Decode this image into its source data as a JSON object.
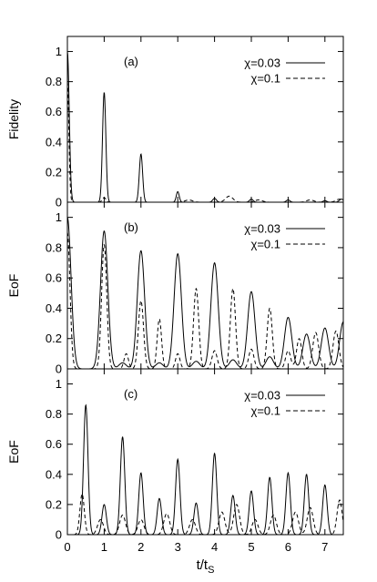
{
  "chart_data": [
    {
      "type": "line",
      "panel_label": "(a)",
      "ylabel": "Fidelity",
      "xlim": [
        0,
        7.5
      ],
      "ylim": [
        0,
        1.1
      ],
      "yticks": [
        "0",
        "0.2",
        "0.4",
        "0.6",
        "0.8",
        "1"
      ],
      "xticks": [],
      "legend_position": "top-right",
      "series": [
        {
          "name": "χ=0.03",
          "style": "solid",
          "peaks": [
            [
              0.0,
              1.0,
              0.05
            ],
            [
              1.0,
              0.73,
              0.045
            ],
            [
              2.0,
              0.32,
              0.045
            ],
            [
              3.0,
              0.07,
              0.04
            ],
            [
              4.0,
              0.025,
              0.05
            ],
            [
              5.0,
              0.02,
              0.05
            ],
            [
              6.0,
              0.015,
              0.05
            ],
            [
              7.0,
              0.01,
              0.05
            ],
            [
              7.45,
              0.02,
              0.06
            ]
          ]
        },
        {
          "name": "χ=0.1",
          "style": "dashed",
          "peaks": [
            [
              0.0,
              0.8,
              0.04
            ],
            [
              1.0,
              0.03,
              0.05
            ],
            [
              3.3,
              0.015,
              0.1
            ],
            [
              4.4,
              0.04,
              0.1
            ],
            [
              5.2,
              0.015,
              0.1
            ],
            [
              6.6,
              0.015,
              0.1
            ],
            [
              7.4,
              0.02,
              0.1
            ]
          ]
        }
      ]
    },
    {
      "type": "line",
      "panel_label": "(b)",
      "ylabel": "EoF",
      "xlim": [
        0,
        7.5
      ],
      "ylim": [
        0,
        1.1
      ],
      "yticks": [
        "0",
        "0.2",
        "0.4",
        "0.6",
        "0.8",
        "1"
      ],
      "xticks": [],
      "legend_position": "top-right",
      "series": [
        {
          "name": "χ=0.03",
          "style": "solid",
          "peaks": [
            [
              0.0,
              1.0,
              0.1
            ],
            [
              1.0,
              0.91,
              0.1
            ],
            [
              1.5,
              0.04,
              0.1
            ],
            [
              2.0,
              0.78,
              0.1
            ],
            [
              2.5,
              0.04,
              0.1
            ],
            [
              3.0,
              0.76,
              0.1
            ],
            [
              3.5,
              0.05,
              0.1
            ],
            [
              4.0,
              0.7,
              0.1
            ],
            [
              4.5,
              0.06,
              0.1
            ],
            [
              5.0,
              0.51,
              0.1
            ],
            [
              5.5,
              0.08,
              0.1
            ],
            [
              6.0,
              0.34,
              0.1
            ],
            [
              6.5,
              0.23,
              0.1
            ],
            [
              7.0,
              0.27,
              0.1
            ],
            [
              7.5,
              0.31,
              0.1
            ]
          ]
        },
        {
          "name": "χ=0.1",
          "style": "dashed",
          "peaks": [
            [
              0.0,
              0.9,
              0.07
            ],
            [
              1.0,
              0.82,
              0.07
            ],
            [
              1.6,
              0.1,
              0.06
            ],
            [
              2.0,
              0.45,
              0.07
            ],
            [
              2.5,
              0.33,
              0.06
            ],
            [
              3.0,
              0.1,
              0.06
            ],
            [
              3.5,
              0.53,
              0.07
            ],
            [
              4.0,
              0.12,
              0.07
            ],
            [
              4.5,
              0.53,
              0.07
            ],
            [
              5.0,
              0.13,
              0.07
            ],
            [
              5.5,
              0.4,
              0.07
            ],
            [
              6.0,
              0.12,
              0.07
            ],
            [
              6.3,
              0.2,
              0.07
            ],
            [
              6.75,
              0.24,
              0.08
            ],
            [
              7.3,
              0.25,
              0.08
            ]
          ]
        }
      ]
    },
    {
      "type": "line",
      "panel_label": "(c)",
      "ylabel": "EoF",
      "xlabel": "t/tS",
      "xlim": [
        0,
        7.5
      ],
      "ylim": [
        0,
        1.1
      ],
      "yticks": [
        "0",
        "0.2",
        "0.4",
        "0.6",
        "0.8",
        "1"
      ],
      "xticks": [
        "0",
        "1",
        "2",
        "3",
        "4",
        "5",
        "6",
        "7"
      ],
      "legend_position": "top-right",
      "series": [
        {
          "name": "χ=0.03",
          "style": "solid",
          "peaks": [
            [
              0.5,
              0.86,
              0.06
            ],
            [
              1.0,
              0.2,
              0.06
            ],
            [
              1.5,
              0.65,
              0.06
            ],
            [
              2.0,
              0.41,
              0.06
            ],
            [
              2.5,
              0.24,
              0.06
            ],
            [
              3.0,
              0.5,
              0.06
            ],
            [
              3.5,
              0.21,
              0.06
            ],
            [
              4.0,
              0.54,
              0.06
            ],
            [
              4.5,
              0.26,
              0.06
            ],
            [
              5.0,
              0.29,
              0.06
            ],
            [
              5.5,
              0.38,
              0.06
            ],
            [
              6.0,
              0.41,
              0.06
            ],
            [
              6.5,
              0.4,
              0.06
            ],
            [
              7.0,
              0.33,
              0.06
            ]
          ]
        },
        {
          "name": "χ=0.1",
          "style": "dashed",
          "peaks": [
            [
              0.4,
              0.27,
              0.06
            ],
            [
              0.9,
              0.1,
              0.08
            ],
            [
              1.5,
              0.13,
              0.08
            ],
            [
              2.0,
              0.1,
              0.08
            ],
            [
              2.7,
              0.14,
              0.08
            ],
            [
              3.4,
              0.1,
              0.08
            ],
            [
              4.2,
              0.15,
              0.08
            ],
            [
              4.6,
              0.2,
              0.08
            ],
            [
              5.1,
              0.1,
              0.08
            ],
            [
              5.6,
              0.13,
              0.08
            ],
            [
              6.2,
              0.15,
              0.08
            ],
            [
              6.6,
              0.18,
              0.08
            ],
            [
              7.4,
              0.23,
              0.07
            ]
          ]
        }
      ]
    }
  ]
}
